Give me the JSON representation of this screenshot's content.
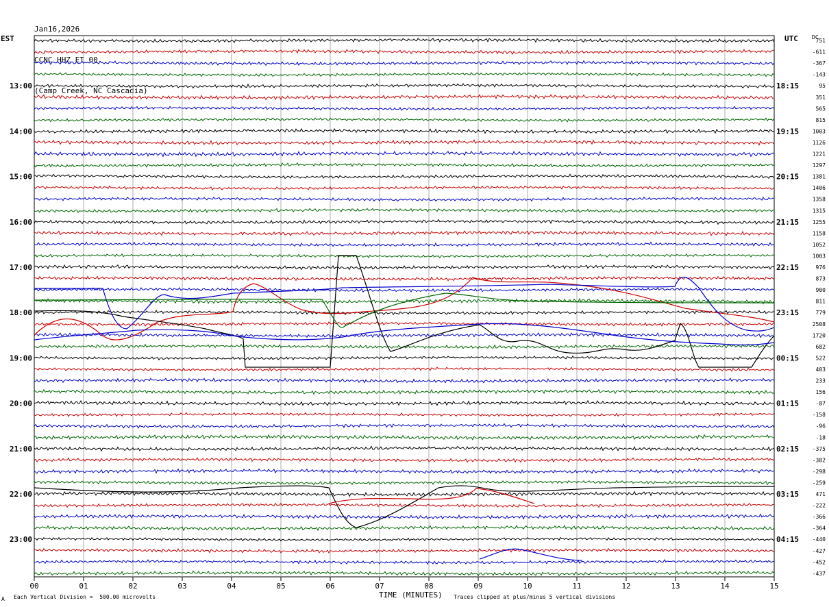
{
  "header": {
    "date": "Jan16,2026",
    "station": "CCNC HHZ ET 00",
    "location": "(Camp Creek, NC Cascadia)"
  },
  "tz_left": "EST",
  "tz_right": "UTC",
  "dc_label": "DC",
  "footer": {
    "scale_note": "Each Vertical Division =  500.00 microvolts",
    "clip_note": "Traces clipped at plus/minus 5 vertical divisions",
    "corner_mark": "A"
  },
  "chart_data": {
    "type": "line",
    "xlabel": "TIME (MINUTES)",
    "x_ticks": [
      "00",
      "01",
      "02",
      "03",
      "04",
      "05",
      "06",
      "07",
      "08",
      "09",
      "10",
      "11",
      "12",
      "13",
      "14",
      "15"
    ],
    "xlim": [
      0,
      15
    ],
    "grid": true,
    "trace_colors": [
      "#000000",
      "#cc0000",
      "#0000cc",
      "#006600"
    ],
    "rows_per_hour": 4,
    "row_count": 48,
    "left_hour_labels": [
      "13:00",
      "14:00",
      "15:00",
      "16:00",
      "17:00",
      "18:00",
      "19:00",
      "20:00",
      "21:00",
      "22:00",
      "23:00"
    ],
    "right_hour_labels": [
      "18:15",
      "19:15",
      "20:15",
      "21:15",
      "22:15",
      "23:15",
      "00:15",
      "01:15",
      "02:15",
      "03:15",
      "04:15"
    ],
    "dc_offsets": [
      "751",
      "-611",
      "-367",
      "-143",
      "95",
      "351",
      "565",
      "815",
      "1003",
      "1126",
      "1221",
      "1297",
      "1381",
      "1406",
      "1358",
      "1315",
      "1255",
      "1158",
      "1052",
      "1003",
      "976",
      "873",
      "900",
      "811",
      "779",
      "2508",
      "1720",
      "682",
      "522",
      "403",
      "233",
      "156",
      "-87",
      "-158",
      "-96",
      "-18",
      "-375",
      "-382",
      "-298",
      "-259",
      "471",
      "-222",
      "-366",
      "-364",
      "-440",
      "-427",
      "-452",
      "-437"
    ],
    "clip_divisions": 5,
    "division_microvolts": 500.0
  }
}
